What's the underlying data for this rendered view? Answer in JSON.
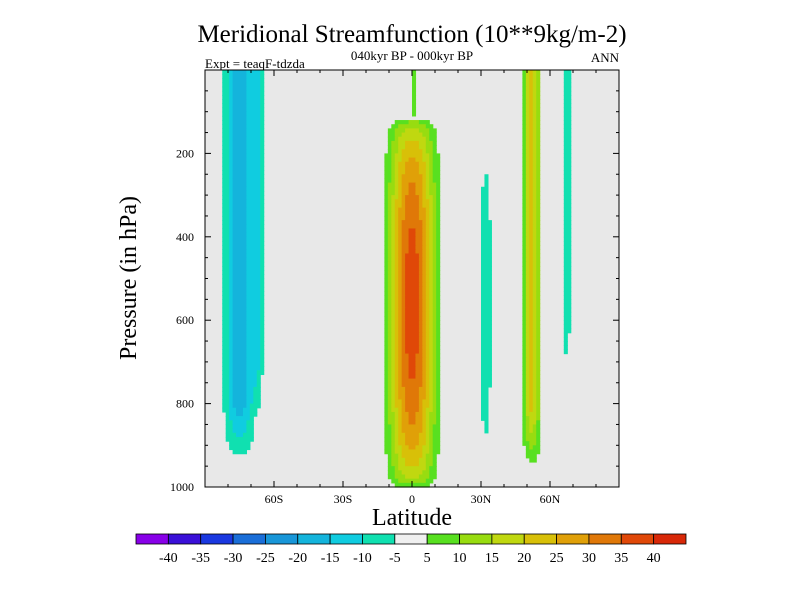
{
  "chart_data": {
    "type": "heatmap",
    "title": "Meridional Streamfunction (10**9kg/m-2)",
    "period": "040kyr BP - 000kyr BP",
    "season": "ANN",
    "experiment": "Expt = teaqF-tdzda",
    "xlabel": "Latitude",
    "ylabel": "Pressure (in hPa)",
    "xlim": [
      -90,
      90
    ],
    "ylim": [
      1000,
      0
    ],
    "x_ticks": [
      {
        "value": -60,
        "label": "60S"
      },
      {
        "value": -30,
        "label": "30S"
      },
      {
        "value": 0,
        "label": "0"
      },
      {
        "value": 30,
        "label": "30N"
      },
      {
        "value": 60,
        "label": "60N"
      }
    ],
    "y_ticks": [
      {
        "value": 200,
        "label": "200"
      },
      {
        "value": 400,
        "label": "400"
      },
      {
        "value": 600,
        "label": "600"
      },
      {
        "value": 800,
        "label": "800"
      },
      {
        "value": 1000,
        "label": "1000"
      }
    ],
    "contour_levels": [
      -40,
      -35,
      -30,
      -25,
      -20,
      -15,
      -10,
      -5,
      5,
      10,
      15,
      20,
      25,
      30,
      35,
      40
    ],
    "colorbar_labels": [
      "-40",
      "-35",
      "-30",
      "-25",
      "-20",
      "-15",
      "-10",
      "-5",
      "5",
      "10",
      "15",
      "20",
      "25",
      "30",
      "35",
      "40"
    ],
    "colors": [
      "#8800e8",
      "#3a10d8",
      "#1a38e0",
      "#1a6ed8",
      "#1896d8",
      "#14b4dc",
      "#10cce0",
      "#10e0b0",
      "#f0f0f0",
      "#58e020",
      "#98dc10",
      "#c0d810",
      "#d8c008",
      "#e0a008",
      "#e07808",
      "#e04808",
      "#d82808"
    ],
    "background": "#e8e8e8",
    "features": [
      {
        "name": "equatorial-max",
        "lat": 0,
        "lat_width": 32,
        "p_top": 120,
        "p_bottom": 1000,
        "peak": 38,
        "shape": "cell"
      },
      {
        "name": "southern-high-lat-min",
        "lat": -75,
        "lat_width": 22,
        "p_top": 0,
        "p_bottom": 950,
        "peak": -18,
        "shape": "column"
      },
      {
        "name": "southern-polar-min",
        "lat": -67,
        "lat_width": 8,
        "p_top": 0,
        "p_bottom": 830,
        "peak": -9,
        "shape": "column"
      },
      {
        "name": "northern-subtropic-min",
        "lat": 32,
        "lat_width": 8,
        "p_top": 220,
        "p_bottom": 900,
        "peak": -10,
        "shape": "cell"
      },
      {
        "name": "northern-midlat-max",
        "lat": 52,
        "lat_width": 12,
        "p_top": 0,
        "p_bottom": 960,
        "peak": 22,
        "shape": "column"
      },
      {
        "name": "northern-high-lat-min",
        "lat": 67,
        "lat_width": 6,
        "p_top": 0,
        "p_bottom": 730,
        "peak": -9,
        "shape": "column"
      },
      {
        "name": "equatorial-upper-min",
        "lat": 1,
        "lat_width": 6,
        "p_top": 0,
        "p_bottom": 130,
        "peak": 6,
        "shape": "column"
      }
    ]
  }
}
